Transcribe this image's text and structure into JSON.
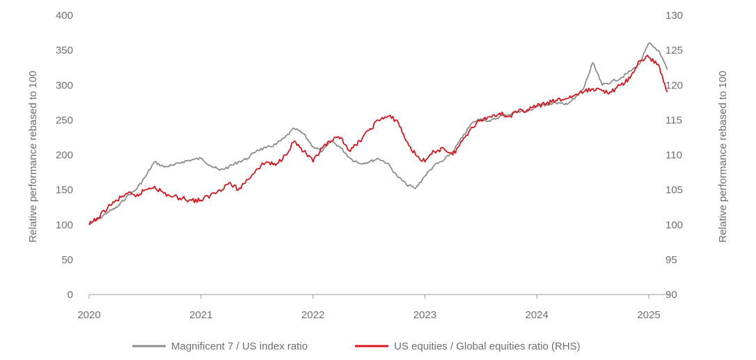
{
  "chart_data": {
    "type": "line",
    "title": "",
    "xlabel": "",
    "ylabel": "Relative performance rebased to 100",
    "y2label": "Relative performance rebased to 100",
    "x_ticks": [
      "2020",
      "2021",
      "2022",
      "2023",
      "2024",
      "2025"
    ],
    "xlim": [
      "2020-01",
      "2025-03"
    ],
    "y_ticks": [
      0,
      50,
      100,
      150,
      200,
      250,
      300,
      350,
      400
    ],
    "ylim": [
      0,
      400
    ],
    "y2_ticks": [
      90,
      95,
      100,
      105,
      110,
      115,
      120,
      125,
      130
    ],
    "y2lim": [
      90,
      130
    ],
    "grid": false,
    "legend_position": "bottom-center",
    "series": [
      {
        "name": "Magnificent 7 / US index ratio",
        "axis": "left",
        "color": "#8c8c8c",
        "x": [
          "2020-01",
          "2020-02",
          "2020-03",
          "2020-04",
          "2020-05",
          "2020-06",
          "2020-07",
          "2020-08",
          "2020-09",
          "2020-10",
          "2020-11",
          "2020-12",
          "2021-01",
          "2021-02",
          "2021-03",
          "2021-04",
          "2021-05",
          "2021-06",
          "2021-07",
          "2021-08",
          "2021-09",
          "2021-10",
          "2021-11",
          "2021-12",
          "2022-01",
          "2022-02",
          "2022-03",
          "2022-04",
          "2022-05",
          "2022-06",
          "2022-07",
          "2022-08",
          "2022-09",
          "2022-10",
          "2022-11",
          "2022-12",
          "2023-01",
          "2023-02",
          "2023-03",
          "2023-04",
          "2023-05",
          "2023-06",
          "2023-07",
          "2023-08",
          "2023-09",
          "2023-10",
          "2023-11",
          "2023-12",
          "2024-01",
          "2024-02",
          "2024-03",
          "2024-04",
          "2024-05",
          "2024-06",
          "2024-07",
          "2024-08",
          "2024-09",
          "2024-10",
          "2024-11",
          "2024-12",
          "2025-01",
          "2025-02",
          "2025-03"
        ],
        "values": [
          100,
          108,
          118,
          125,
          140,
          150,
          168,
          190,
          183,
          185,
          190,
          193,
          195,
          185,
          178,
          183,
          190,
          195,
          207,
          210,
          215,
          225,
          238,
          230,
          212,
          205,
          220,
          210,
          195,
          188,
          190,
          195,
          188,
          170,
          158,
          152,
          170,
          185,
          192,
          205,
          225,
          245,
          252,
          248,
          255,
          258,
          263,
          262,
          270,
          272,
          275,
          272,
          280,
          295,
          332,
          300,
          305,
          310,
          320,
          330,
          360,
          350,
          322
        ]
      },
      {
        "name": "US equities /  Global equities ratio (RHS)",
        "axis": "right",
        "color": "#d7141e",
        "x": [
          "2020-01",
          "2020-02",
          "2020-03",
          "2020-04",
          "2020-05",
          "2020-06",
          "2020-07",
          "2020-08",
          "2020-09",
          "2020-10",
          "2020-11",
          "2020-12",
          "2021-01",
          "2021-02",
          "2021-03",
          "2021-04",
          "2021-05",
          "2021-06",
          "2021-07",
          "2021-08",
          "2021-09",
          "2021-10",
          "2021-11",
          "2021-12",
          "2022-01",
          "2022-02",
          "2022-03",
          "2022-04",
          "2022-05",
          "2022-06",
          "2022-07",
          "2022-08",
          "2022-09",
          "2022-10",
          "2022-11",
          "2022-12",
          "2023-01",
          "2023-02",
          "2023-03",
          "2023-04",
          "2023-05",
          "2023-06",
          "2023-07",
          "2023-08",
          "2023-09",
          "2023-10",
          "2023-11",
          "2023-12",
          "2024-01",
          "2024-02",
          "2024-03",
          "2024-04",
          "2024-05",
          "2024-06",
          "2024-07",
          "2024-08",
          "2024-09",
          "2024-10",
          "2024-11",
          "2024-12",
          "2025-01",
          "2025-02",
          "2025-03"
        ],
        "values": [
          100,
          101,
          102.5,
          103.5,
          104.5,
          104,
          105,
          105.5,
          104.5,
          104,
          103.8,
          103.5,
          103.5,
          104.2,
          105,
          106,
          105,
          106.5,
          108,
          109,
          108.5,
          110,
          112,
          110.5,
          109,
          111,
          112,
          112.5,
          110.5,
          112,
          113.5,
          115,
          115.5,
          115,
          112,
          110,
          109,
          110.5,
          111,
          110,
          112,
          114,
          115,
          115.5,
          116,
          115.5,
          116.2,
          116.5,
          117,
          117.3,
          117.8,
          118,
          118.5,
          119,
          119.5,
          119.2,
          119,
          120,
          121,
          123.5,
          124,
          123,
          119
        ]
      }
    ]
  }
}
